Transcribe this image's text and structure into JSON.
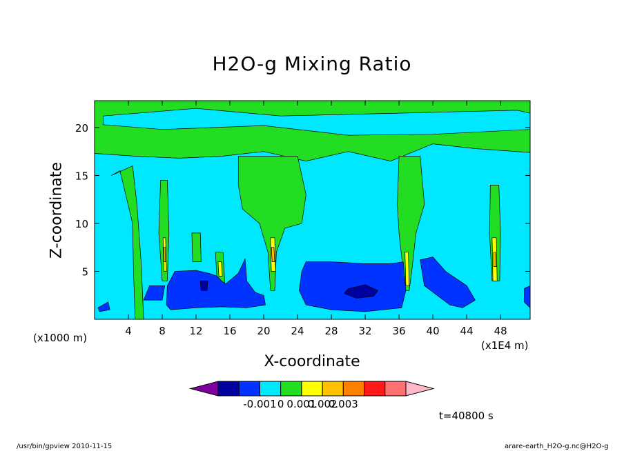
{
  "chart_data": {
    "type": "heatmap",
    "title": "H2O-g Mixing Ratio",
    "xlabel": "X-coordinate",
    "ylabel": "Z-coordinate",
    "x_unit": "(x1000 m)",
    "x_scale_note": "(x1E4 m)",
    "xlim": [
      0,
      51.5
    ],
    "ylim": [
      0,
      22.8
    ],
    "x_ticks": [
      4,
      8,
      12,
      16,
      20,
      24,
      28,
      32,
      36,
      40,
      44,
      48
    ],
    "y_ticks": [
      5,
      10,
      15,
      20
    ],
    "time_label": "t=40800 s",
    "colorbar": {
      "colors": [
        "#8000a0",
        "#0000a0",
        "#0033ff",
        "#00e8ff",
        "#22dd22",
        "#ffff00",
        "#ffc000",
        "#ff8000",
        "#ff1a1a",
        "#ff7070",
        "#ffb8c8"
      ],
      "tick_labels": [
        "-0.001",
        "0",
        "0.001",
        "0.002",
        "0.003"
      ]
    },
    "background_level_color": "#00e8ff",
    "regions": [
      {
        "level": "green",
        "desc": "upper layer",
        "points": [
          [
            0,
            22.8
          ],
          [
            51.5,
            22.8
          ],
          [
            51.5,
            17.4
          ],
          [
            45,
            17.8
          ],
          [
            40,
            18.3
          ],
          [
            35,
            16.5
          ],
          [
            30,
            17.5
          ],
          [
            25,
            16.5
          ],
          [
            20,
            17.5
          ],
          [
            15,
            17
          ],
          [
            10,
            16.8
          ],
          [
            5,
            17
          ],
          [
            0,
            17.3
          ]
        ]
      },
      {
        "level": "green",
        "desc": "plume x3",
        "points": [
          [
            2,
            15
          ],
          [
            3,
            15.5
          ],
          [
            4.5,
            10
          ],
          [
            4.6,
            5
          ],
          [
            4.8,
            0
          ],
          [
            5.8,
            0
          ],
          [
            5.5,
            6
          ],
          [
            5,
            12
          ],
          [
            4.5,
            16
          ]
        ]
      },
      {
        "level": "green",
        "desc": "plume x8",
        "points": [
          [
            7.8,
            14.5
          ],
          [
            8.6,
            14.5
          ],
          [
            8.8,
            9
          ],
          [
            8.6,
            4
          ],
          [
            8,
            4
          ],
          [
            7.6,
            9
          ]
        ]
      },
      {
        "level": "green",
        "desc": "plume x12",
        "points": [
          [
            11.5,
            9
          ],
          [
            12.5,
            9
          ],
          [
            12.6,
            6
          ],
          [
            11.6,
            6
          ]
        ]
      },
      {
        "level": "green",
        "desc": "plume x15",
        "points": [
          [
            14.3,
            7
          ],
          [
            15.2,
            7
          ],
          [
            15.4,
            3.5
          ],
          [
            14.5,
            3.5
          ]
        ]
      },
      {
        "level": "green",
        "desc": "anvil x20",
        "points": [
          [
            17,
            17
          ],
          [
            24,
            17
          ],
          [
            25,
            13
          ],
          [
            24.5,
            10
          ],
          [
            22.5,
            9.5
          ],
          [
            21.5,
            7
          ],
          [
            21.3,
            3
          ],
          [
            20.8,
            3
          ],
          [
            20.5,
            7
          ],
          [
            19.5,
            10
          ],
          [
            17.5,
            11.5
          ],
          [
            17,
            14
          ]
        ]
      },
      {
        "level": "green",
        "desc": "plume x37",
        "points": [
          [
            36,
            17
          ],
          [
            38.5,
            17
          ],
          [
            39,
            12
          ],
          [
            38,
            9
          ],
          [
            37.5,
            5
          ],
          [
            37.2,
            3
          ],
          [
            36.8,
            3
          ],
          [
            36.5,
            5
          ],
          [
            36,
            9
          ],
          [
            35.8,
            12
          ]
        ]
      },
      {
        "level": "green",
        "desc": "plume x48",
        "points": [
          [
            46.8,
            14
          ],
          [
            47.8,
            14
          ],
          [
            48,
            9
          ],
          [
            47.9,
            4
          ],
          [
            47,
            4
          ],
          [
            46.7,
            9
          ]
        ]
      },
      {
        "level": "cyan",
        "desc": "upper cyan band",
        "points": [
          [
            1,
            21.2
          ],
          [
            12,
            22
          ],
          [
            22,
            21.2
          ],
          [
            36,
            21.5
          ],
          [
            50,
            21.8
          ],
          [
            51.5,
            21.5
          ],
          [
            51.5,
            19.8
          ],
          [
            40,
            19.3
          ],
          [
            30,
            19.2
          ],
          [
            20,
            20.2
          ],
          [
            8,
            19.8
          ],
          [
            1,
            20.3
          ]
        ]
      },
      {
        "level": "blue",
        "desc": "band 1",
        "points": [
          [
            9.5,
            5
          ],
          [
            12,
            5.1
          ],
          [
            13.5,
            4.8
          ],
          [
            14.5,
            4.5
          ],
          [
            15,
            4
          ],
          [
            15.5,
            3.7
          ],
          [
            17,
            4.8
          ],
          [
            17.8,
            6.3
          ],
          [
            18,
            4
          ],
          [
            19,
            2.8
          ],
          [
            20,
            2.5
          ],
          [
            20.2,
            1.5
          ],
          [
            18,
            1.2
          ],
          [
            15,
            1.3
          ],
          [
            12,
            1.2
          ],
          [
            9,
            1
          ],
          [
            8.5,
            1.5
          ],
          [
            8.6,
            3.5
          ]
        ]
      },
      {
        "level": "blue",
        "desc": "band 2",
        "points": [
          [
            24.5,
            5
          ],
          [
            25,
            6
          ],
          [
            28,
            6
          ],
          [
            32,
            5.8
          ],
          [
            35,
            5.8
          ],
          [
            36.5,
            6
          ],
          [
            36.8,
            3
          ],
          [
            36.3,
            1.2
          ],
          [
            32,
            0.8
          ],
          [
            28,
            1
          ],
          [
            25,
            1.5
          ],
          [
            24.2,
            3
          ]
        ]
      },
      {
        "level": "blue",
        "desc": "band 3",
        "points": [
          [
            38.5,
            6.2
          ],
          [
            40,
            6.5
          ],
          [
            41.5,
            5
          ],
          [
            44,
            3.5
          ],
          [
            45,
            2
          ],
          [
            43.5,
            1.2
          ],
          [
            42,
            1.5
          ],
          [
            40.5,
            2.5
          ],
          [
            39,
            3.5
          ]
        ]
      },
      {
        "level": "blue",
        "desc": "small x6",
        "points": [
          [
            5.8,
            2
          ],
          [
            8,
            2
          ],
          [
            8.3,
            3.5
          ],
          [
            6.5,
            3.5
          ]
        ]
      },
      {
        "level": "blue",
        "desc": "small x50",
        "points": [
          [
            50.8,
            3.2
          ],
          [
            51.5,
            3.5
          ],
          [
            51.5,
            1.2
          ],
          [
            50.8,
            1.8
          ]
        ]
      },
      {
        "level": "blue",
        "desc": "small x1",
        "points": [
          [
            0.4,
            1.2
          ],
          [
            1.6,
            1.8
          ],
          [
            1.8,
            1
          ],
          [
            0.6,
            0.8
          ]
        ]
      },
      {
        "level": "navy",
        "desc": "core x32",
        "points": [
          [
            30,
            3.2
          ],
          [
            32,
            3.6
          ],
          [
            33.5,
            3
          ],
          [
            33,
            2.4
          ],
          [
            31,
            2.2
          ],
          [
            29.5,
            2.7
          ]
        ]
      },
      {
        "level": "navy",
        "desc": "core x13",
        "points": [
          [
            12.5,
            4
          ],
          [
            13.4,
            4
          ],
          [
            13.3,
            3
          ],
          [
            12.6,
            3
          ]
        ]
      },
      {
        "level": "yellow",
        "desc": "core x8",
        "points": [
          [
            8.1,
            8.5
          ],
          [
            8.4,
            8.5
          ],
          [
            8.5,
            5
          ],
          [
            8.2,
            5
          ]
        ]
      },
      {
        "level": "yellow",
        "desc": "core x21",
        "points": [
          [
            20.8,
            8.5
          ],
          [
            21.3,
            8.5
          ],
          [
            21.4,
            5
          ],
          [
            20.9,
            5
          ]
        ]
      },
      {
        "level": "yellow",
        "desc": "core x37",
        "points": [
          [
            36.7,
            7
          ],
          [
            37.1,
            7
          ],
          [
            37.2,
            3.5
          ],
          [
            36.8,
            3.5
          ]
        ]
      },
      {
        "level": "yellow",
        "desc": "core x47",
        "points": [
          [
            47,
            8.5
          ],
          [
            47.5,
            8.5
          ],
          [
            47.6,
            4
          ],
          [
            47.1,
            4
          ]
        ]
      },
      {
        "level": "yellow",
        "desc": "core x15",
        "points": [
          [
            14.6,
            6
          ],
          [
            15,
            6
          ],
          [
            15.1,
            4.5
          ],
          [
            14.7,
            4.5
          ]
        ]
      },
      {
        "level": "orange",
        "desc": "peak x8",
        "points": [
          [
            8.2,
            7.5
          ],
          [
            8.4,
            7.5
          ],
          [
            8.4,
            6
          ],
          [
            8.2,
            6
          ]
        ]
      },
      {
        "level": "orange",
        "desc": "peak x21",
        "points": [
          [
            20.9,
            7.5
          ],
          [
            21.2,
            7.5
          ],
          [
            21.3,
            6
          ],
          [
            21,
            6
          ]
        ]
      },
      {
        "level": "orange",
        "desc": "peak x47",
        "points": [
          [
            47.2,
            7
          ],
          [
            47.4,
            7
          ],
          [
            47.5,
            5.5
          ],
          [
            47.2,
            5.5
          ]
        ]
      }
    ]
  },
  "footer": {
    "left": "/usr/bin/gpview  2010-11-15",
    "right": "arare-earth_H2O-g.nc@H2O-g"
  }
}
